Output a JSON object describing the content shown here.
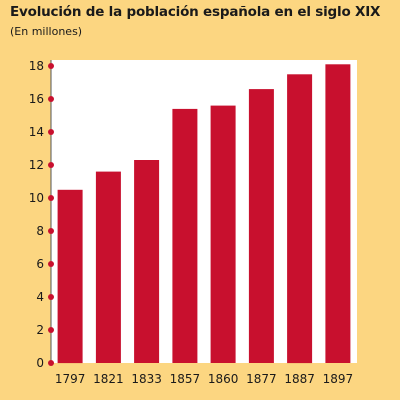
{
  "chart_data": {
    "type": "bar",
    "title": "Evolución de la población española en el siglo XIX",
    "subtitle": "(En millones)",
    "categories": [
      "1797",
      "1821",
      "1833",
      "1857",
      "1860",
      "1877",
      "1887",
      "1897"
    ],
    "values": [
      10.5,
      11.6,
      12.3,
      15.4,
      15.6,
      16.6,
      17.5,
      18.1
    ],
    "y_ticks": [
      0,
      2,
      4,
      6,
      8,
      10,
      12,
      14,
      16,
      18
    ],
    "ylim": [
      0,
      18.2
    ],
    "grid": false,
    "legend": "none",
    "colors": {
      "background": "#fcd681",
      "plot_area": "#ffffff",
      "bar": "#c8102e",
      "tick_dot": "#c8102e",
      "text": "#1a1a1a"
    }
  }
}
